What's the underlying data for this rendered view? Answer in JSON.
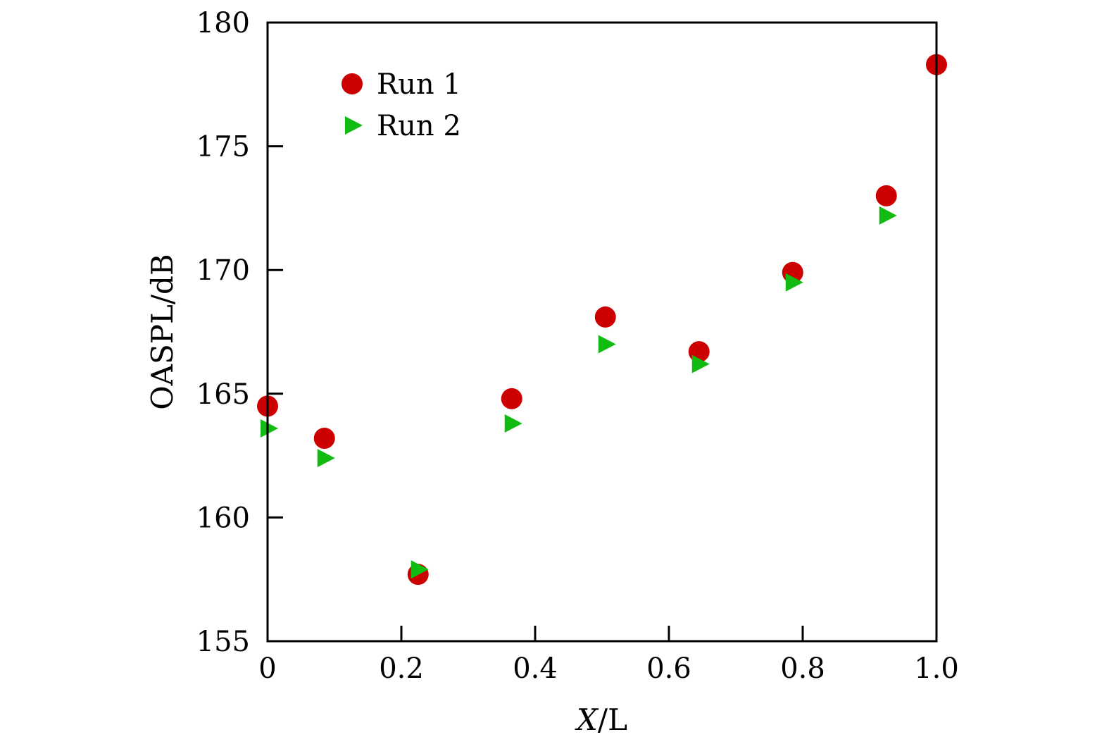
{
  "chart_data": {
    "type": "scatter",
    "xlabel_var": "X",
    "xlabel_rest": "/L",
    "ylabel": "OASPL/dB",
    "xlim": [
      0,
      1.0
    ],
    "ylim": [
      155,
      180
    ],
    "x_ticks": [
      0,
      0.2,
      0.4,
      0.6,
      0.8,
      1.0
    ],
    "x_tick_labels": [
      "0",
      "0.2",
      "0.4",
      "0.6",
      "0.8",
      "1.0"
    ],
    "y_ticks": [
      155,
      160,
      165,
      170,
      175,
      180
    ],
    "y_tick_labels": [
      "155",
      "160",
      "165",
      "170",
      "175",
      "180"
    ],
    "legend_position": "top-left",
    "grid": false,
    "series": [
      {
        "name": "Run 1",
        "marker": "circle",
        "color": "#cc0000",
        "x": [
          0.0,
          0.085,
          0.225,
          0.365,
          0.505,
          0.645,
          0.785,
          0.925,
          1.0
        ],
        "y": [
          164.5,
          163.2,
          157.7,
          164.8,
          168.1,
          166.7,
          169.9,
          173.0,
          178.3
        ]
      },
      {
        "name": "Run 2",
        "marker": "triangle-right",
        "color": "#11bb11",
        "x": [
          0.0,
          0.085,
          0.225,
          0.365,
          0.505,
          0.645,
          0.785,
          0.925
        ],
        "y": [
          163.6,
          162.4,
          157.9,
          163.8,
          167.0,
          166.2,
          169.5,
          172.2
        ]
      }
    ]
  }
}
